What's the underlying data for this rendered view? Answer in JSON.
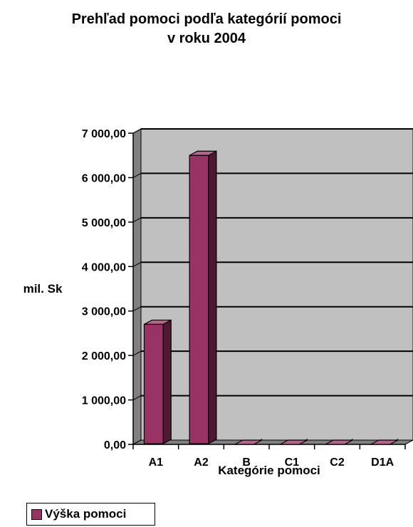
{
  "chart_data": {
    "type": "bar",
    "title": [
      "Prehľad pomoci podľa kategórií pomoci",
      "v roku 2004"
    ],
    "categories": [
      "A1",
      "A2",
      "B",
      "C1",
      "C2",
      "D1A"
    ],
    "series": [
      {
        "name": "Výška pomoci",
        "values": [
          2700,
          6500,
          0,
          0,
          0,
          0
        ],
        "color": "#993366"
      }
    ],
    "ylim": [
      0,
      7000
    ],
    "yticks": [
      "0,00",
      "1 000,00",
      "2 000,00",
      "3 000,00",
      "4 000,00",
      "5 000,00",
      "6 000,00",
      "7 000,00"
    ],
    "ytick_values": [
      0,
      1000,
      2000,
      3000,
      4000,
      5000,
      6000,
      7000
    ],
    "xlabel": "Kategórie pomoci",
    "ylabel": "mil. Sk",
    "grid": true,
    "legend_position": "bottom-left",
    "background_color": "#c0c0c0"
  }
}
